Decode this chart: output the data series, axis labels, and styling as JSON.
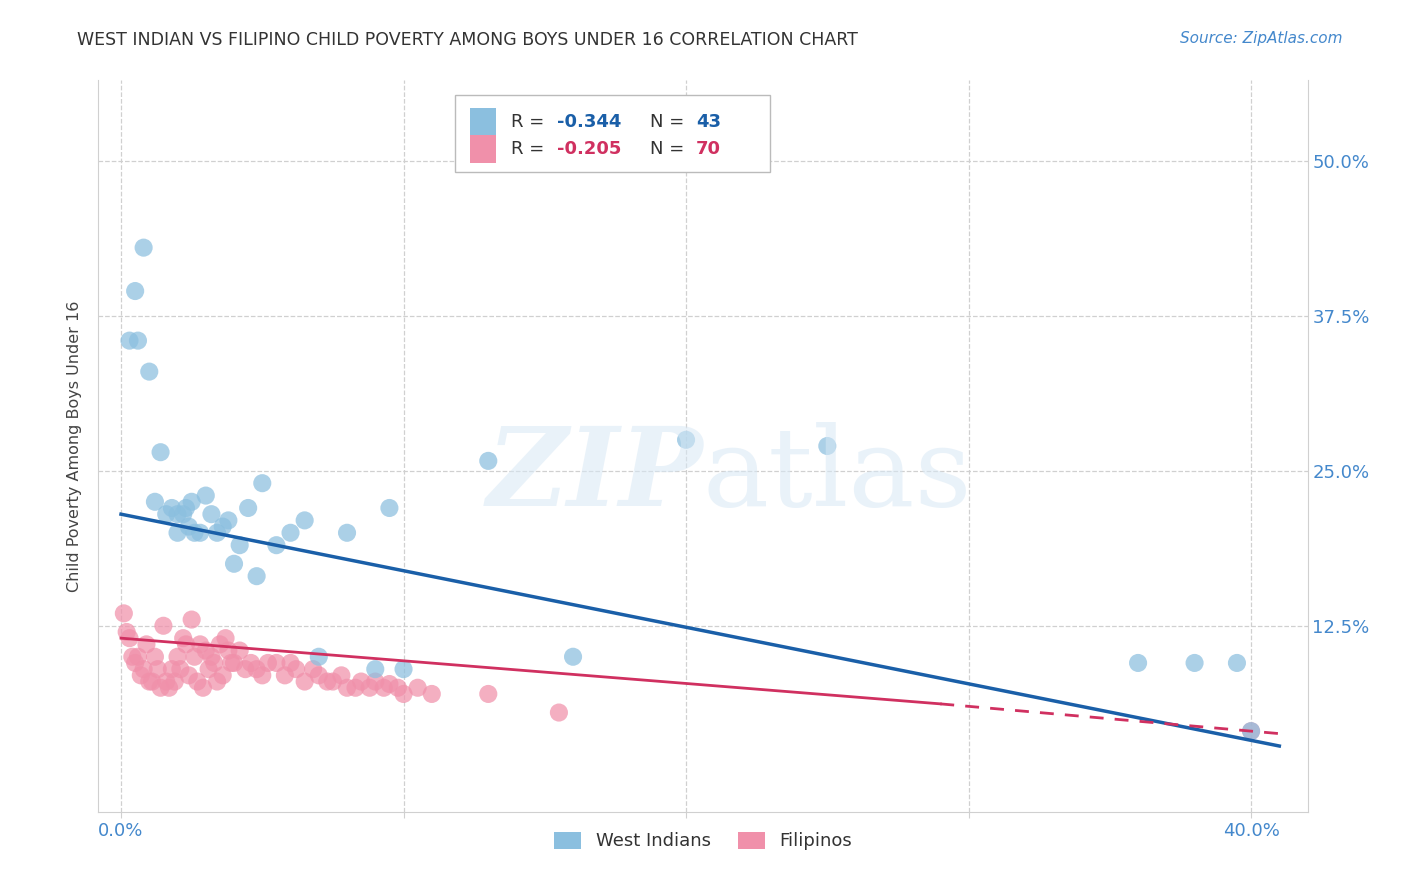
{
  "title": "WEST INDIAN VS FILIPINO CHILD POVERTY AMONG BOYS UNDER 16 CORRELATION CHART",
  "source": "Source: ZipAtlas.com",
  "ylabel": "Child Poverty Among Boys Under 16",
  "west_indian_R": -0.344,
  "west_indian_N": 43,
  "filipino_R": -0.205,
  "filipino_N": 70,
  "west_indian_color": "#8bbfdf",
  "filipino_color": "#f090aa",
  "west_indian_line_color": "#1a5fa8",
  "filipino_line_color": "#d03060",
  "background_color": "#ffffff",
  "grid_color": "#d0d0d0",
  "title_color": "#333333",
  "axis_label_color": "#444444",
  "tick_color": "#4488cc",
  "xlim": [
    -0.008,
    0.42
  ],
  "ylim": [
    -0.025,
    0.565
  ],
  "wi_line_x0": 0.0,
  "wi_line_y0": 0.215,
  "wi_line_x1": 0.41,
  "wi_line_y1": 0.028,
  "fi_line_x0": 0.0,
  "fi_line_y0": 0.115,
  "fi_line_x1_solid": 0.29,
  "fi_line_y1_solid": 0.062,
  "fi_line_x1_dashed": 0.41,
  "fi_line_y1_dashed": 0.038,
  "west_indian_points_x": [
    0.003,
    0.005,
    0.006,
    0.008,
    0.01,
    0.012,
    0.014,
    0.016,
    0.018,
    0.02,
    0.02,
    0.022,
    0.023,
    0.024,
    0.025,
    0.026,
    0.028,
    0.03,
    0.032,
    0.034,
    0.036,
    0.038,
    0.04,
    0.042,
    0.045,
    0.048,
    0.05,
    0.055,
    0.06,
    0.065,
    0.07,
    0.08,
    0.09,
    0.095,
    0.1,
    0.13,
    0.16,
    0.2,
    0.25,
    0.36,
    0.38,
    0.395,
    0.4
  ],
  "west_indian_points_y": [
    0.355,
    0.395,
    0.355,
    0.43,
    0.33,
    0.225,
    0.265,
    0.215,
    0.22,
    0.2,
    0.215,
    0.215,
    0.22,
    0.205,
    0.225,
    0.2,
    0.2,
    0.23,
    0.215,
    0.2,
    0.205,
    0.21,
    0.175,
    0.19,
    0.22,
    0.165,
    0.24,
    0.19,
    0.2,
    0.21,
    0.1,
    0.2,
    0.09,
    0.22,
    0.09,
    0.258,
    0.1,
    0.275,
    0.27,
    0.095,
    0.095,
    0.095,
    0.04
  ],
  "filipino_points_x": [
    0.001,
    0.002,
    0.003,
    0.004,
    0.005,
    0.006,
    0.007,
    0.008,
    0.009,
    0.01,
    0.011,
    0.012,
    0.013,
    0.014,
    0.015,
    0.016,
    0.017,
    0.018,
    0.019,
    0.02,
    0.021,
    0.022,
    0.023,
    0.024,
    0.025,
    0.026,
    0.027,
    0.028,
    0.029,
    0.03,
    0.031,
    0.032,
    0.033,
    0.034,
    0.035,
    0.036,
    0.037,
    0.038,
    0.039,
    0.04,
    0.042,
    0.044,
    0.046,
    0.048,
    0.05,
    0.052,
    0.055,
    0.058,
    0.06,
    0.062,
    0.065,
    0.068,
    0.07,
    0.073,
    0.075,
    0.078,
    0.08,
    0.083,
    0.085,
    0.088,
    0.09,
    0.093,
    0.095,
    0.098,
    0.1,
    0.105,
    0.11,
    0.13,
    0.155,
    0.4
  ],
  "filipino_points_y": [
    0.135,
    0.12,
    0.115,
    0.1,
    0.095,
    0.1,
    0.085,
    0.09,
    0.11,
    0.08,
    0.08,
    0.1,
    0.09,
    0.075,
    0.125,
    0.08,
    0.075,
    0.09,
    0.08,
    0.1,
    0.09,
    0.115,
    0.11,
    0.085,
    0.13,
    0.1,
    0.08,
    0.11,
    0.075,
    0.105,
    0.09,
    0.1,
    0.095,
    0.08,
    0.11,
    0.085,
    0.115,
    0.105,
    0.095,
    0.095,
    0.105,
    0.09,
    0.095,
    0.09,
    0.085,
    0.095,
    0.095,
    0.085,
    0.095,
    0.09,
    0.08,
    0.09,
    0.085,
    0.08,
    0.08,
    0.085,
    0.075,
    0.075,
    0.08,
    0.075,
    0.08,
    0.075,
    0.078,
    0.075,
    0.07,
    0.075,
    0.07,
    0.07,
    0.055,
    0.04
  ]
}
